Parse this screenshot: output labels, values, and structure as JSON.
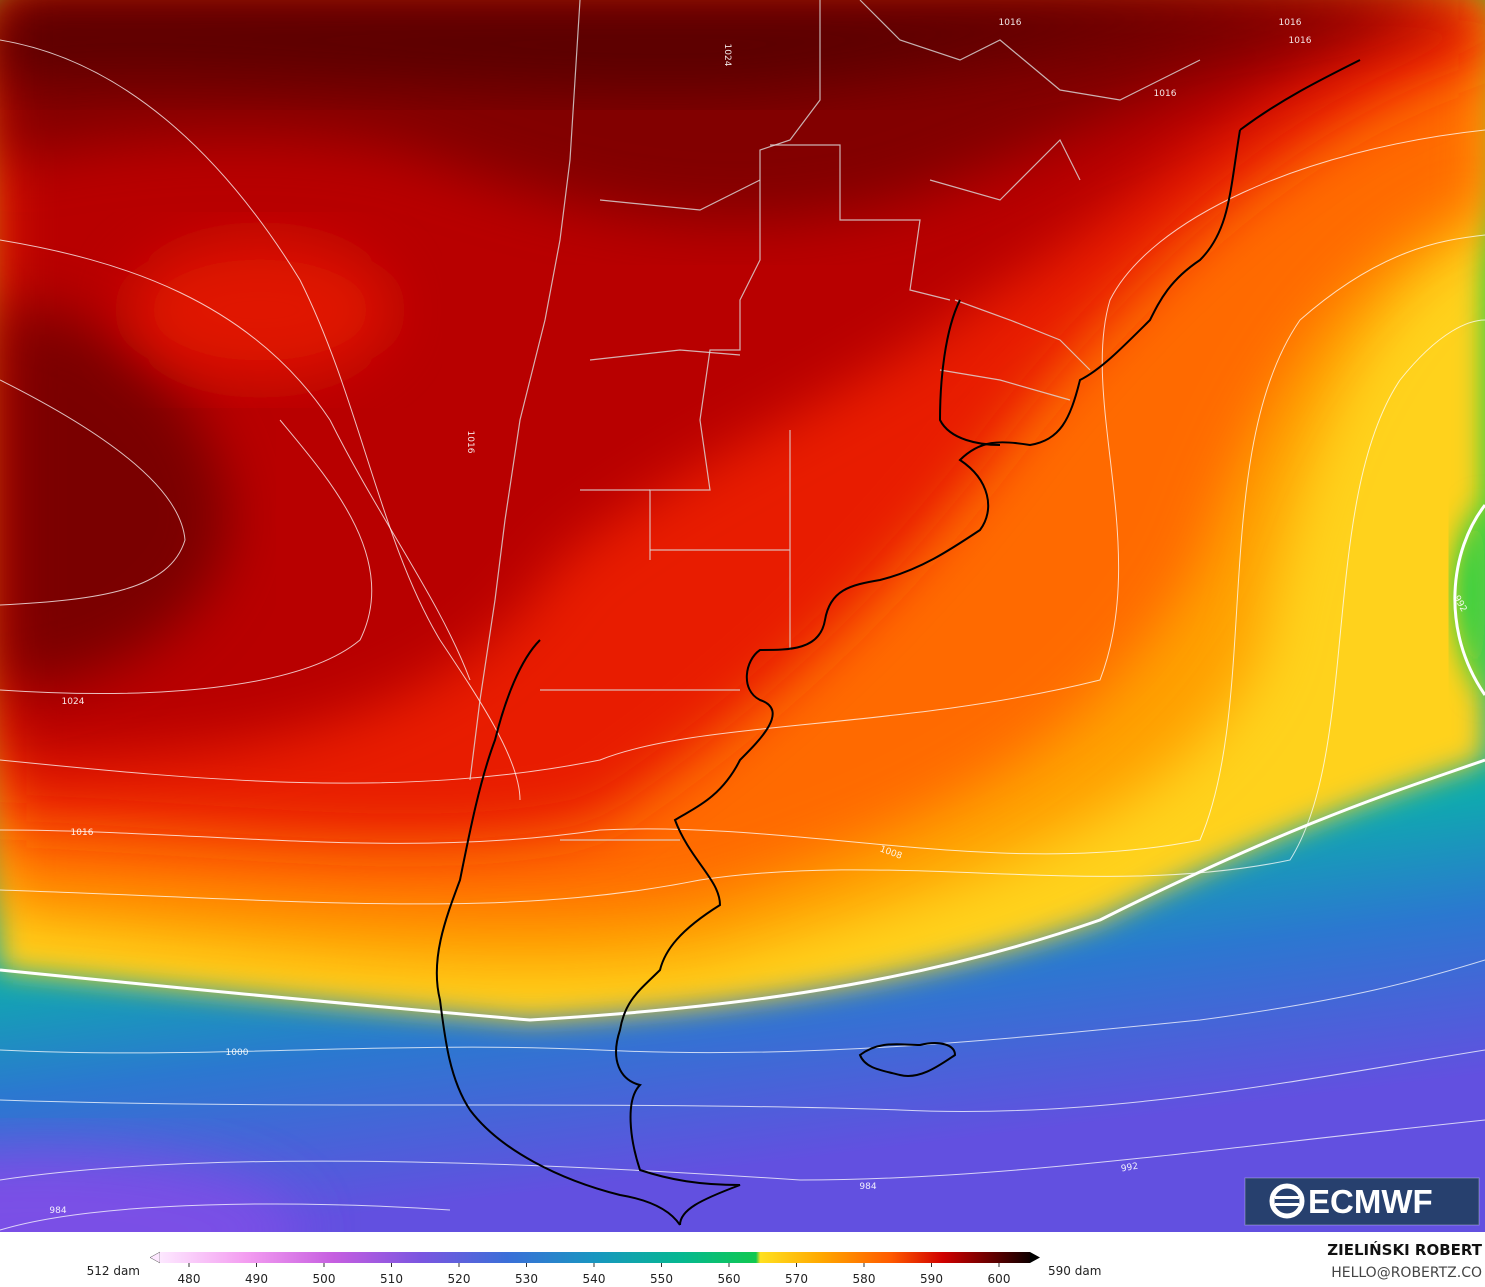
{
  "map": {
    "isobar_labels": [
      1016,
      1016,
      1016,
      1016,
      1016,
      1024,
      1024,
      1016,
      1008,
      1000,
      992,
      992,
      984,
      984
    ]
  },
  "colorbar": {
    "ticks": [
      480,
      490,
      500,
      510,
      520,
      530,
      540,
      550,
      560,
      570,
      580,
      590,
      600
    ],
    "min_label": "512 dam",
    "max_label": "590 dam"
  },
  "credit": {
    "name": "ZIELIŃSKI ROBERT",
    "email": "HELLO@ROBERTZ.CO"
  },
  "logo": "ECMWF"
}
